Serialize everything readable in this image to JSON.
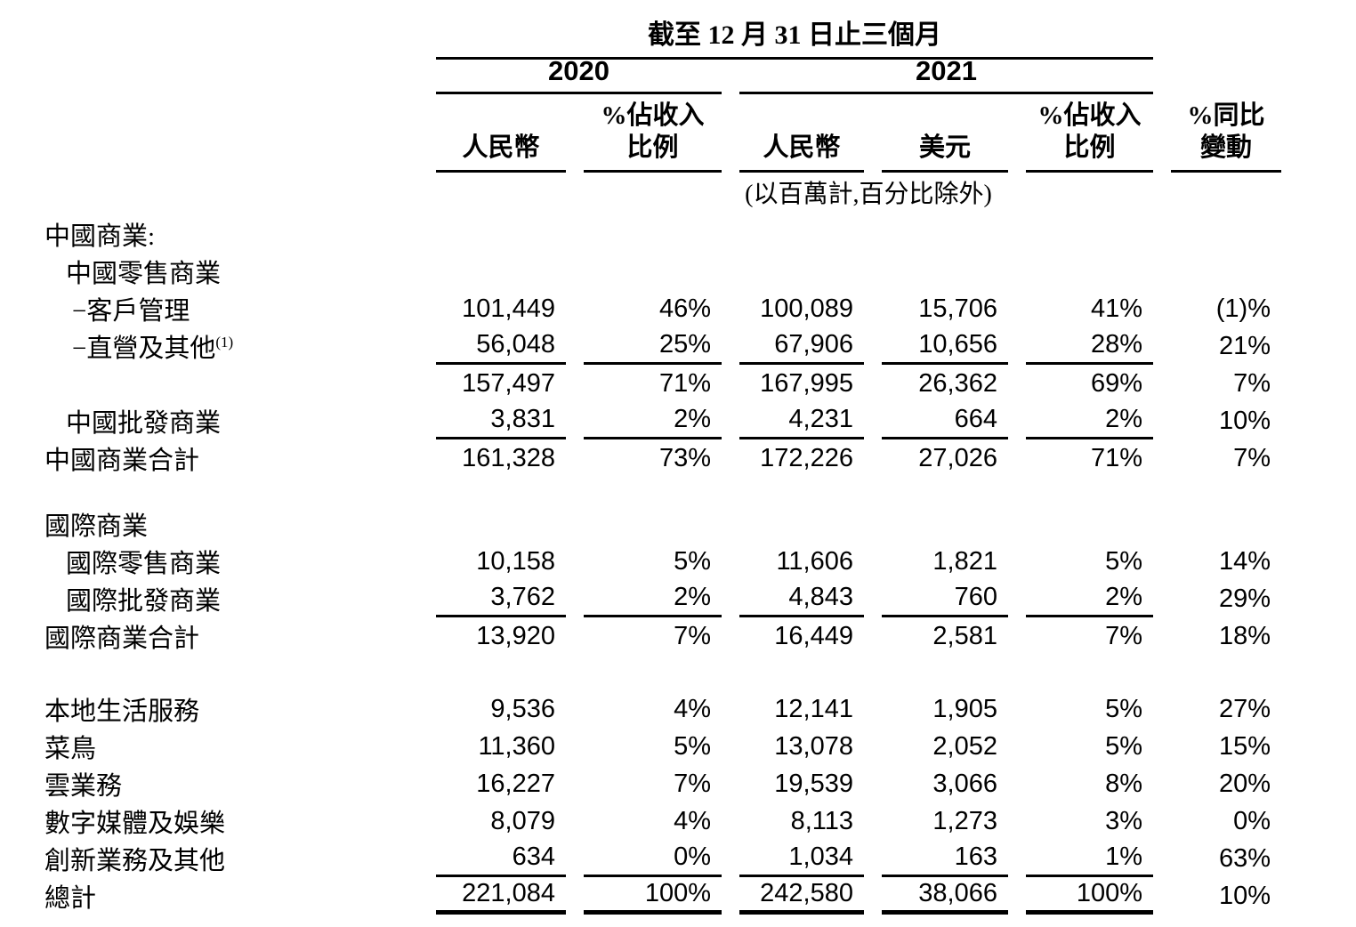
{
  "page": {
    "background_color": "#ffffff",
    "text_color": "#000000",
    "rule_color": "#000000"
  },
  "table": {
    "title": "截至 12 月 31 日止三個月",
    "unit_note": "(以百萬計,百分比除外)",
    "year_groups": {
      "y2020": "2020",
      "y2021": "2021"
    },
    "headers": {
      "rmb_2020": "人民幣",
      "pct_2020_line1": "%佔收入",
      "pct_2020_line2": "比例",
      "rmb_2021": "人民幣",
      "usd_2021": "美元",
      "pct_2021_line1": "%佔收入",
      "pct_2021_line2": "比例",
      "yoy_line1": "%同比",
      "yoy_line2": "變動"
    },
    "col_keys": [
      "rmb-2020",
      "pct-revenue-2020",
      "rmb-2021",
      "usd-2021",
      "pct-revenue-2021",
      "yoy-change"
    ],
    "rows": [
      {
        "label": "中國商業:",
        "indent": 0,
        "values": [
          "",
          "",
          "",
          "",
          "",
          ""
        ],
        "rule": "none"
      },
      {
        "label": "中國零售商業",
        "indent": 1,
        "values": [
          "",
          "",
          "",
          "",
          "",
          ""
        ],
        "rule": "none"
      },
      {
        "label": "−客戶管理",
        "indent": 2,
        "values": [
          "101,449",
          "46%",
          "100,089",
          "15,706",
          "41%",
          "(1)%"
        ],
        "rule": "none"
      },
      {
        "label": "−直營及其他",
        "sup": "(1)",
        "indent": 2,
        "values": [
          "56,048",
          "25%",
          "67,906",
          "10,656",
          "28%",
          "21%"
        ],
        "rule": "thin"
      },
      {
        "label": "",
        "indent": 0,
        "values": [
          "157,497",
          "71%",
          "167,995",
          "26,362",
          "69%",
          "7%"
        ],
        "rule": "none"
      },
      {
        "label": "中國批發商業",
        "indent": 1,
        "values": [
          "3,831",
          "2%",
          "4,231",
          "664",
          "2%",
          "10%"
        ],
        "rule": "thin"
      },
      {
        "label": "中國商業合計",
        "indent": 0,
        "values": [
          "161,328",
          "73%",
          "172,226",
          "27,026",
          "71%",
          "7%"
        ],
        "rule": "none"
      },
      {
        "label": "國際商業",
        "indent": 0,
        "values": [
          "",
          "",
          "",
          "",
          "",
          ""
        ],
        "rule": "none",
        "spacer": 32
      },
      {
        "label": "國際零售商業",
        "indent": 1,
        "values": [
          "10,158",
          "5%",
          "11,606",
          "1,821",
          "5%",
          "14%"
        ],
        "rule": "none"
      },
      {
        "label": "國際批發商業",
        "indent": 1,
        "values": [
          "3,762",
          "2%",
          "4,843",
          "760",
          "2%",
          "29%"
        ],
        "rule": "thin"
      },
      {
        "label": "國際商業合計",
        "indent": 0,
        "values": [
          "13,920",
          "7%",
          "16,449",
          "2,581",
          "7%",
          "18%"
        ],
        "rule": "none"
      },
      {
        "label": "本地生活服務",
        "indent": 0,
        "values": [
          "9,536",
          "4%",
          "12,141",
          "1,905",
          "5%",
          "27%"
        ],
        "rule": "none",
        "spacer": 40
      },
      {
        "label": "菜鳥",
        "indent": 0,
        "values": [
          "11,360",
          "5%",
          "13,078",
          "2,052",
          "5%",
          "15%"
        ],
        "rule": "none"
      },
      {
        "label": "雲業務",
        "indent": 0,
        "values": [
          "16,227",
          "7%",
          "19,539",
          "3,066",
          "8%",
          "20%"
        ],
        "rule": "none"
      },
      {
        "label": "數字媒體及娛樂",
        "indent": 0,
        "values": [
          "8,079",
          "4%",
          "8,113",
          "1,273",
          "3%",
          "0%"
        ],
        "rule": "none"
      },
      {
        "label": "創新業務及其他",
        "indent": 0,
        "values": [
          "634",
          "0%",
          "1,034",
          "163",
          "1%",
          "63%"
        ],
        "rule": "thin"
      },
      {
        "label": "總計",
        "indent": 0,
        "values": [
          "221,084",
          "100%",
          "242,580",
          "38,066",
          "100%",
          "10%"
        ],
        "rule": "thick"
      }
    ]
  }
}
